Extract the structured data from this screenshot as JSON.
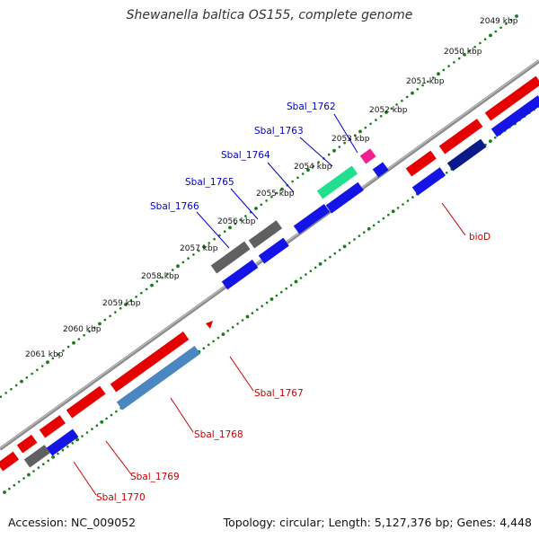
{
  "title": "Shewanella baltica OS155, complete genome",
  "accession": "Accession: NC_009052",
  "topology": "Topology: circular; Length: 5,127,376 bp; Genes: 4,448",
  "colors": {
    "forward_gene": "#e60000",
    "reverse_gene": "#1414e6",
    "other_feature": "#606060",
    "rna_feature": "#20e090",
    "misc_feature": "#f02090",
    "highlight_gene": "#4a86c0",
    "backbone": "#8c8c8c",
    "tick_dots": "#1a7a1a",
    "forward_label": "#cc0000",
    "reverse_label": "#0000cc"
  },
  "ticks": [
    "2049 kbp",
    "2050 kbp",
    "2051 kbp",
    "2052 kbp",
    "2053 kbp",
    "2054 kbp",
    "2055 kbp",
    "2056 kbp",
    "2057 kbp",
    "2058 kbp",
    "2059 kbp",
    "2060 kbp",
    "2061 kbp"
  ],
  "gene_labels": {
    "reverse": [
      "Sbal_1762",
      "Sbal_1763",
      "Sbal_1764",
      "Sbal_1765",
      "Sbal_1766"
    ],
    "forward": [
      "bioD",
      "Sbal_1767",
      "Sbal_1768",
      "Sbal_1769",
      "Sbal_1770"
    ]
  }
}
